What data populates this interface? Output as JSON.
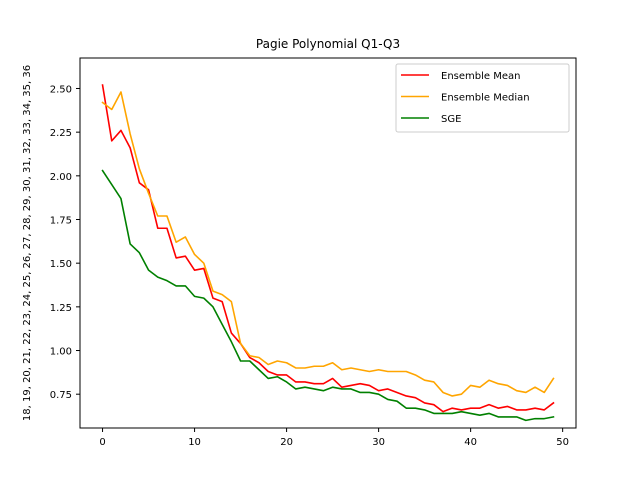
{
  "chart_data": {
    "type": "line",
    "title": "Pagie Polynomial Q1-Q3",
    "ylabel": "18, 19, 20, 21, 22, 23, 24, 25, 26, 27, 28, 29, 30, 31, 32, 33, 34, 35, 36",
    "xlabel": "",
    "xlim": [
      -2.45,
      51.45
    ],
    "ylim": [
      0.5565,
      2.6745
    ],
    "x_ticks": [
      0,
      10,
      20,
      30,
      40,
      50
    ],
    "y_ticks": [
      0.75,
      1.0,
      1.25,
      1.5,
      1.75,
      2.0,
      2.25,
      2.5
    ],
    "y_tick_labels": [
      "0.75",
      "1.00",
      "1.25",
      "1.50",
      "1.75",
      "2.00",
      "2.25",
      "2.50"
    ],
    "grid": false,
    "legend_position": "upper right",
    "x": [
      0,
      1,
      2,
      3,
      4,
      5,
      6,
      7,
      8,
      9,
      10,
      11,
      12,
      13,
      14,
      15,
      16,
      17,
      18,
      19,
      20,
      21,
      22,
      23,
      24,
      25,
      26,
      27,
      28,
      29,
      30,
      31,
      32,
      33,
      34,
      35,
      36,
      37,
      38,
      39,
      40,
      41,
      42,
      43,
      44,
      45,
      46,
      47,
      48,
      49
    ],
    "series": [
      {
        "name": "Ensemble Mean",
        "color": "#ff0000",
        "values": [
          2.52,
          2.2,
          2.26,
          2.16,
          1.96,
          1.92,
          1.7,
          1.7,
          1.53,
          1.54,
          1.46,
          1.47,
          1.3,
          1.28,
          1.1,
          1.04,
          0.96,
          0.93,
          0.88,
          0.86,
          0.86,
          0.82,
          0.82,
          0.81,
          0.81,
          0.84,
          0.79,
          0.8,
          0.81,
          0.8,
          0.77,
          0.78,
          0.76,
          0.74,
          0.73,
          0.7,
          0.69,
          0.65,
          0.67,
          0.66,
          0.67,
          0.67,
          0.69,
          0.67,
          0.68,
          0.66,
          0.66,
          0.67,
          0.66,
          0.7
        ]
      },
      {
        "name": "Ensemble Median",
        "color": "#ffa500",
        "values": [
          2.42,
          2.38,
          2.48,
          2.24,
          2.04,
          1.9,
          1.77,
          1.77,
          1.62,
          1.65,
          1.55,
          1.5,
          1.34,
          1.32,
          1.28,
          1.04,
          0.97,
          0.96,
          0.92,
          0.94,
          0.93,
          0.9,
          0.9,
          0.91,
          0.91,
          0.93,
          0.89,
          0.9,
          0.89,
          0.88,
          0.89,
          0.88,
          0.88,
          0.88,
          0.86,
          0.83,
          0.82,
          0.76,
          0.74,
          0.75,
          0.8,
          0.79,
          0.83,
          0.81,
          0.8,
          0.77,
          0.76,
          0.79,
          0.76,
          0.84
        ]
      },
      {
        "name": "SGE",
        "color": "#008000",
        "values": [
          2.03,
          1.95,
          1.87,
          1.61,
          1.56,
          1.46,
          1.42,
          1.4,
          1.37,
          1.37,
          1.31,
          1.3,
          1.25,
          1.15,
          1.05,
          0.94,
          0.94,
          0.89,
          0.84,
          0.85,
          0.82,
          0.78,
          0.79,
          0.78,
          0.77,
          0.79,
          0.78,
          0.78,
          0.76,
          0.76,
          0.75,
          0.72,
          0.71,
          0.67,
          0.67,
          0.66,
          0.64,
          0.64,
          0.64,
          0.65,
          0.64,
          0.63,
          0.64,
          0.62,
          0.62,
          0.62,
          0.6,
          0.61,
          0.61,
          0.62
        ]
      }
    ]
  }
}
